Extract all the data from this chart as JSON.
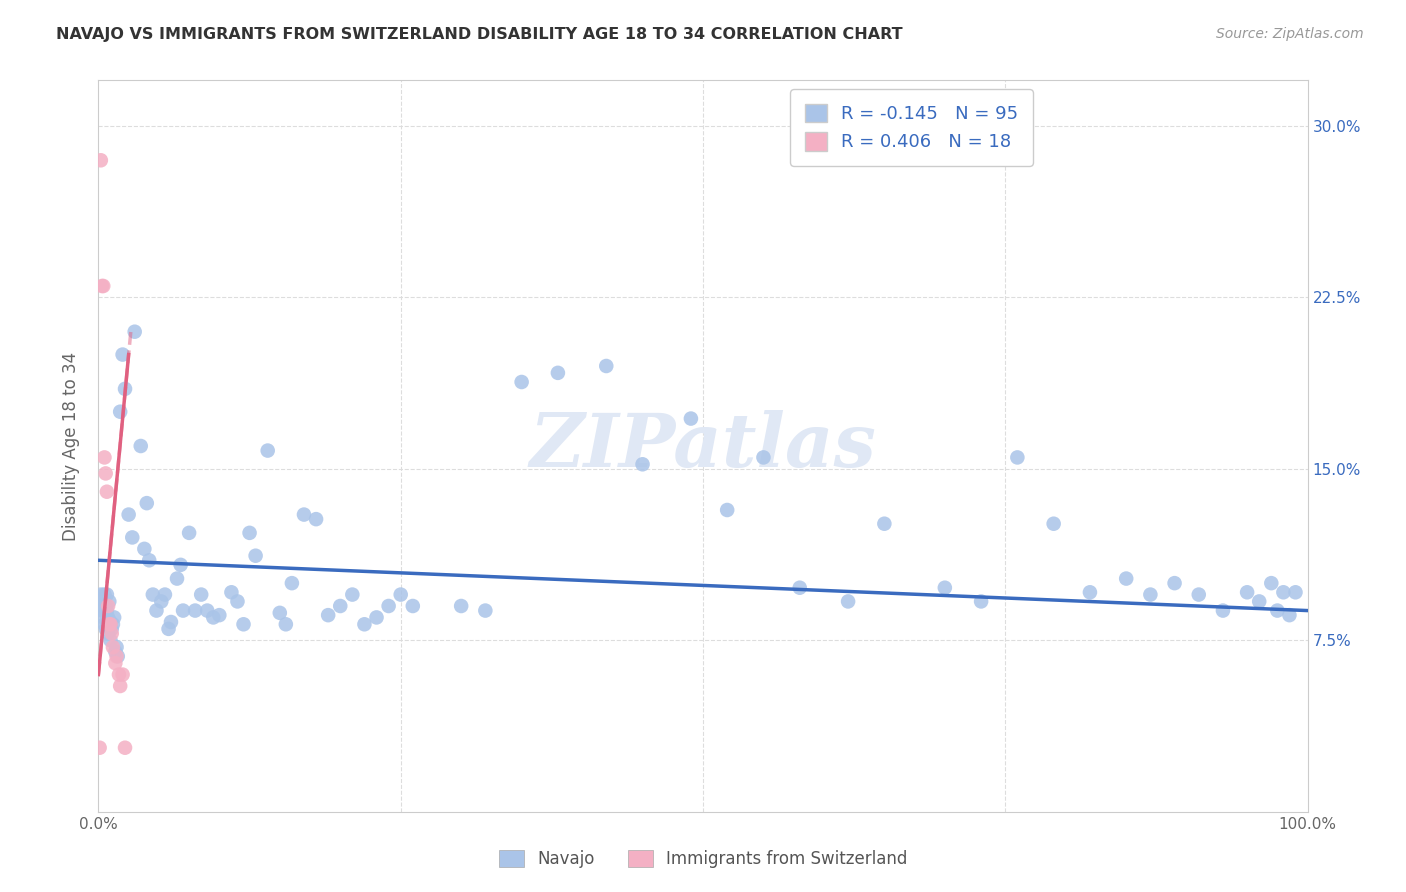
{
  "title": "NAVAJO VS IMMIGRANTS FROM SWITZERLAND DISABILITY AGE 18 TO 34 CORRELATION CHART",
  "source": "Source: ZipAtlas.com",
  "ylabel": "Disability Age 18 to 34",
  "xlim": [
    0,
    1.0
  ],
  "ylim": [
    0.0,
    0.32
  ],
  "yticks": [
    0.075,
    0.15,
    0.225,
    0.3
  ],
  "yticklabels": [
    "7.5%",
    "15.0%",
    "22.5%",
    "30.0%"
  ],
  "navajo_R": -0.145,
  "navajo_N": 95,
  "swiss_R": 0.406,
  "swiss_N": 18,
  "navajo_color": "#aac4e8",
  "swiss_color": "#f4b0c4",
  "navajo_line_color": "#3a6bbf",
  "swiss_line_color": "#e06080",
  "legend_text_color": "#3a6bbf",
  "navajo_x": [
    0.002,
    0.003,
    0.003,
    0.004,
    0.004,
    0.005,
    0.005,
    0.006,
    0.006,
    0.007,
    0.007,
    0.008,
    0.008,
    0.009,
    0.01,
    0.01,
    0.011,
    0.012,
    0.013,
    0.014,
    0.015,
    0.016,
    0.018,
    0.02,
    0.022,
    0.025,
    0.028,
    0.03,
    0.035,
    0.038,
    0.04,
    0.042,
    0.045,
    0.048,
    0.052,
    0.055,
    0.058,
    0.06,
    0.065,
    0.068,
    0.07,
    0.075,
    0.08,
    0.085,
    0.09,
    0.095,
    0.1,
    0.11,
    0.115,
    0.12,
    0.125,
    0.13,
    0.14,
    0.15,
    0.155,
    0.16,
    0.17,
    0.18,
    0.19,
    0.2,
    0.21,
    0.22,
    0.23,
    0.24,
    0.25,
    0.26,
    0.3,
    0.32,
    0.35,
    0.38,
    0.42,
    0.45,
    0.49,
    0.52,
    0.55,
    0.58,
    0.62,
    0.65,
    0.7,
    0.73,
    0.76,
    0.79,
    0.82,
    0.85,
    0.87,
    0.89,
    0.91,
    0.93,
    0.95,
    0.96,
    0.97,
    0.975,
    0.98,
    0.985,
    0.99
  ],
  "navajo_y": [
    0.095,
    0.09,
    0.088,
    0.092,
    0.085,
    0.095,
    0.082,
    0.09,
    0.08,
    0.088,
    0.095,
    0.085,
    0.078,
    0.092,
    0.083,
    0.075,
    0.08,
    0.082,
    0.085,
    0.07,
    0.072,
    0.068,
    0.175,
    0.2,
    0.185,
    0.13,
    0.12,
    0.21,
    0.16,
    0.115,
    0.135,
    0.11,
    0.095,
    0.088,
    0.092,
    0.095,
    0.08,
    0.083,
    0.102,
    0.108,
    0.088,
    0.122,
    0.088,
    0.095,
    0.088,
    0.085,
    0.086,
    0.096,
    0.092,
    0.082,
    0.122,
    0.112,
    0.158,
    0.087,
    0.082,
    0.1,
    0.13,
    0.128,
    0.086,
    0.09,
    0.095,
    0.082,
    0.085,
    0.09,
    0.095,
    0.09,
    0.09,
    0.088,
    0.188,
    0.192,
    0.195,
    0.152,
    0.172,
    0.132,
    0.155,
    0.098,
    0.092,
    0.126,
    0.098,
    0.092,
    0.155,
    0.126,
    0.096,
    0.102,
    0.095,
    0.1,
    0.095,
    0.088,
    0.096,
    0.092,
    0.1,
    0.088,
    0.096,
    0.086,
    0.096
  ],
  "swiss_x": [
    0.001,
    0.002,
    0.003,
    0.004,
    0.005,
    0.006,
    0.007,
    0.008,
    0.009,
    0.01,
    0.011,
    0.012,
    0.014,
    0.015,
    0.017,
    0.018,
    0.02,
    0.022
  ],
  "swiss_y": [
    0.028,
    0.285,
    0.23,
    0.23,
    0.155,
    0.148,
    0.14,
    0.09,
    0.082,
    0.082,
    0.078,
    0.072,
    0.065,
    0.068,
    0.06,
    0.055,
    0.06,
    0.028
  ],
  "background_color": "#ffffff",
  "grid_color": "#dddddd",
  "navajo_line_x0": 0.0,
  "navajo_line_y0": 0.11,
  "navajo_line_x1": 1.0,
  "navajo_line_y1": 0.088,
  "swiss_line_x0": 0.0,
  "swiss_line_y0": 0.06,
  "swiss_line_x1": 0.025,
  "swiss_line_y1": 0.2
}
